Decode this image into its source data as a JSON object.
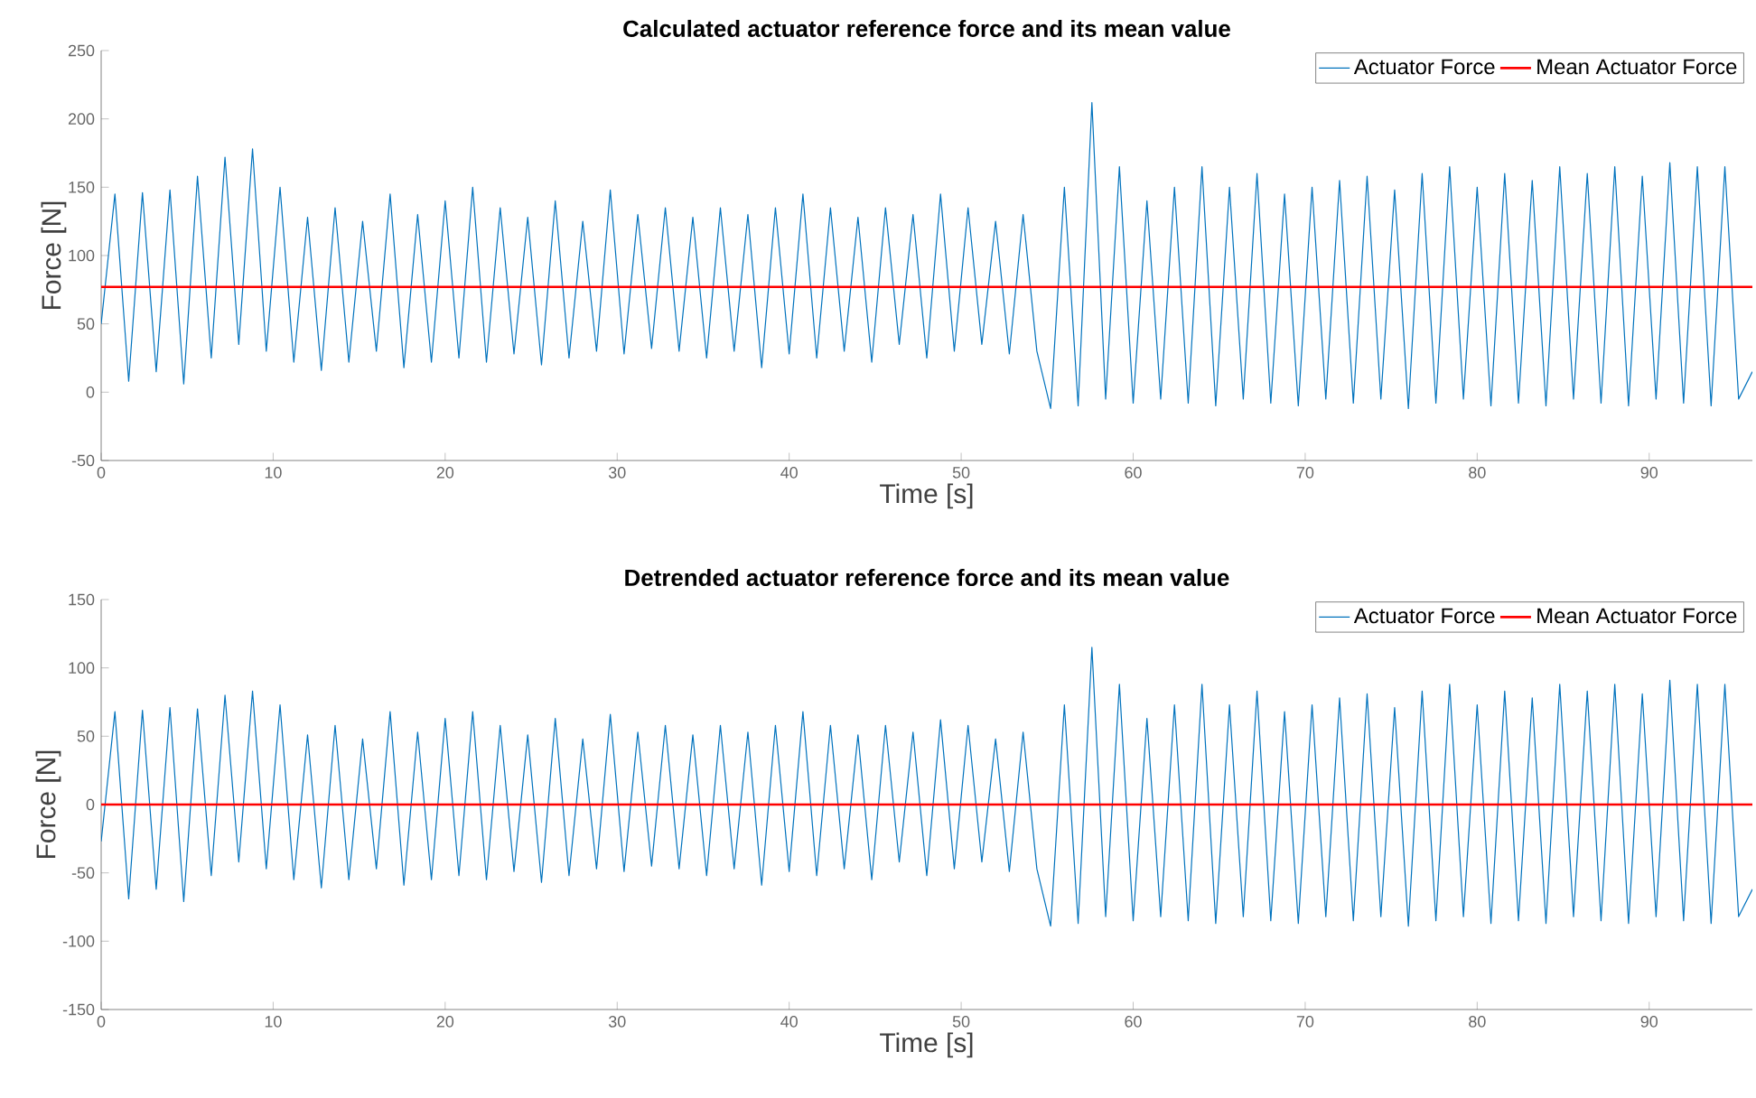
{
  "chart_data": [
    {
      "type": "line",
      "title": "Calculated actuator reference force and its mean value",
      "xlabel": "Time [s]",
      "ylabel": "Force [N]",
      "xlim": [
        0,
        96
      ],
      "ylim": [
        -50,
        250
      ],
      "xticks": [
        0,
        10,
        20,
        30,
        40,
        50,
        60,
        70,
        80,
        90
      ],
      "yticks": [
        -50,
        0,
        50,
        100,
        150,
        200,
        250
      ],
      "legend": "top right",
      "series": [
        {
          "name": "Actuator Force",
          "color": "#0072bd",
          "x": [
            0,
            0.8,
            1.6,
            2.4,
            3.2,
            4.0,
            4.8,
            5.6,
            6.4,
            7.2,
            8.0,
            8.8,
            9.6,
            10.4,
            11.2,
            12.0,
            12.8,
            13.6,
            14.4,
            15.2,
            16.0,
            16.8,
            17.6,
            18.4,
            19.2,
            20.0,
            20.8,
            21.6,
            22.4,
            23.2,
            24.0,
            24.8,
            25.6,
            26.4,
            27.2,
            28.0,
            28.8,
            29.6,
            30.4,
            31.2,
            32.0,
            32.8,
            33.6,
            34.4,
            35.2,
            36.0,
            36.8,
            37.6,
            38.4,
            39.2,
            40.0,
            40.8,
            41.6,
            42.4,
            43.2,
            44.0,
            44.8,
            45.6,
            46.4,
            47.2,
            48.0,
            48.8,
            49.6,
            50.4,
            51.2,
            52.0,
            52.8,
            53.6,
            54.4,
            55.2,
            56.0,
            56.8,
            57.6,
            58.4,
            59.2,
            60.0,
            60.8,
            61.6,
            62.4,
            63.2,
            64.0,
            64.8,
            65.6,
            66.4,
            67.2,
            68.0,
            68.8,
            69.6,
            70.4,
            71.2,
            72.0,
            72.8,
            73.6,
            74.4,
            75.2,
            76.0,
            76.8,
            77.6,
            78.4,
            79.2,
            80.0,
            80.8,
            81.6,
            82.4,
            83.2,
            84.0,
            84.8,
            85.6,
            86.4,
            87.2,
            88.0,
            88.8,
            89.6,
            90.4,
            91.2,
            92.0,
            92.8,
            93.6,
            94.4,
            95.2,
            96.0
          ],
          "values": [
            50,
            145,
            8,
            146,
            15,
            148,
            6,
            158,
            25,
            172,
            35,
            178,
            30,
            150,
            22,
            128,
            16,
            135,
            22,
            125,
            30,
            145,
            18,
            130,
            22,
            140,
            25,
            150,
            22,
            135,
            28,
            128,
            20,
            140,
            25,
            125,
            30,
            148,
            28,
            130,
            32,
            135,
            30,
            128,
            25,
            135,
            30,
            130,
            18,
            135,
            28,
            145,
            25,
            135,
            30,
            128,
            22,
            135,
            35,
            130,
            25,
            145,
            30,
            135,
            35,
            125,
            28,
            130,
            30,
            -12,
            150,
            -10,
            212,
            -5,
            165,
            -8,
            140,
            -5,
            150,
            -8,
            165,
            -10,
            150,
            -5,
            160,
            -8,
            145,
            -10,
            150,
            -5,
            155,
            -8,
            158,
            -5,
            148,
            -12,
            160,
            -8,
            165,
            -5,
            150,
            -10,
            160,
            -8,
            155,
            -10,
            165,
            -5,
            160,
            -8,
            165,
            -10,
            158,
            -5,
            168,
            -8,
            165,
            -10,
            165,
            -5,
            15
          ]
        },
        {
          "name": "Mean Actuator Force",
          "color": "#ff0000",
          "x": [
            0,
            96
          ],
          "values": [
            77,
            77
          ]
        }
      ]
    },
    {
      "type": "line",
      "title": "Detrended actuator reference force and its mean value",
      "xlabel": "Time [s]",
      "ylabel": "Force [N]",
      "xlim": [
        0,
        96
      ],
      "ylim": [
        -150,
        150
      ],
      "xticks": [
        0,
        10,
        20,
        30,
        40,
        50,
        60,
        70,
        80,
        90
      ],
      "yticks": [
        -150,
        -100,
        -50,
        0,
        50,
        100,
        150
      ],
      "legend": "top right",
      "series": [
        {
          "name": "Actuator Force",
          "color": "#0072bd",
          "x": [
            0,
            0.8,
            1.6,
            2.4,
            3.2,
            4.0,
            4.8,
            5.6,
            6.4,
            7.2,
            8.0,
            8.8,
            9.6,
            10.4,
            11.2,
            12.0,
            12.8,
            13.6,
            14.4,
            15.2,
            16.0,
            16.8,
            17.6,
            18.4,
            19.2,
            20.0,
            20.8,
            21.6,
            22.4,
            23.2,
            24.0,
            24.8,
            25.6,
            26.4,
            27.2,
            28.0,
            28.8,
            29.6,
            30.4,
            31.2,
            32.0,
            32.8,
            33.6,
            34.4,
            35.2,
            36.0,
            36.8,
            37.6,
            38.4,
            39.2,
            40.0,
            40.8,
            41.6,
            42.4,
            43.2,
            44.0,
            44.8,
            45.6,
            46.4,
            47.2,
            48.0,
            48.8,
            49.6,
            50.4,
            51.2,
            52.0,
            52.8,
            53.6,
            54.4,
            55.2,
            56.0,
            56.8,
            57.6,
            58.4,
            59.2,
            60.0,
            60.8,
            61.6,
            62.4,
            63.2,
            64.0,
            64.8,
            65.6,
            66.4,
            67.2,
            68.0,
            68.8,
            69.6,
            70.4,
            71.2,
            72.0,
            72.8,
            73.6,
            74.4,
            75.2,
            76.0,
            76.8,
            77.6,
            78.4,
            79.2,
            80.0,
            80.8,
            81.6,
            82.4,
            83.2,
            84.0,
            84.8,
            85.6,
            86.4,
            87.2,
            88.0,
            88.8,
            89.6,
            90.4,
            91.2,
            92.0,
            92.8,
            93.6,
            94.4,
            95.2,
            96.0
          ],
          "values": [
            -27,
            68,
            -69,
            69,
            -62,
            71,
            -71,
            70,
            -52,
            80,
            -42,
            83,
            -47,
            73,
            -55,
            51,
            -61,
            58,
            -55,
            48,
            -47,
            68,
            -59,
            53,
            -55,
            63,
            -52,
            68,
            -55,
            58,
            -49,
            51,
            -57,
            63,
            -52,
            48,
            -47,
            66,
            -49,
            53,
            -45,
            58,
            -47,
            51,
            -52,
            58,
            -47,
            53,
            -59,
            58,
            -49,
            68,
            -52,
            58,
            -47,
            51,
            -55,
            58,
            -42,
            53,
            -52,
            62,
            -47,
            58,
            -42,
            48,
            -49,
            53,
            -47,
            -89,
            73,
            -87,
            115,
            -82,
            88,
            -85,
            63,
            -82,
            73,
            -85,
            88,
            -87,
            73,
            -82,
            83,
            -85,
            68,
            -87,
            73,
            -82,
            78,
            -85,
            81,
            -82,
            71,
            -89,
            83,
            -85,
            88,
            -82,
            73,
            -87,
            83,
            -85,
            78,
            -87,
            88,
            -82,
            83,
            -85,
            88,
            -87,
            81,
            -82,
            91,
            -85,
            88,
            -87,
            88,
            -82,
            -62
          ]
        },
        {
          "name": "Mean Actuator Force",
          "color": "#ff0000",
          "x": [
            0,
            96
          ],
          "values": [
            0,
            0
          ]
        }
      ]
    }
  ]
}
